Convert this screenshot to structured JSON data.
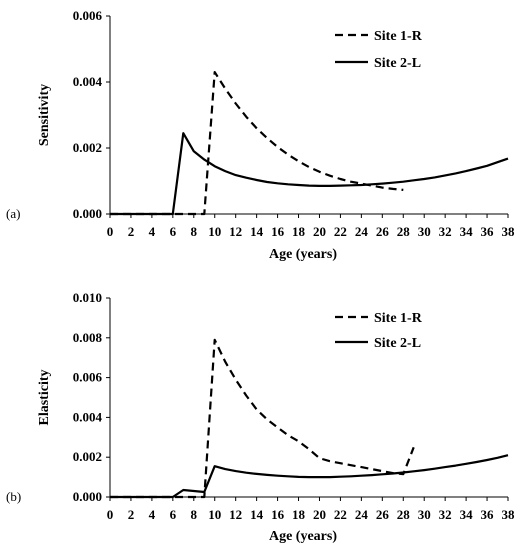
{
  "chart_data": [
    {
      "type": "line",
      "panel_label": "(a)",
      "xlabel": "Age (years)",
      "ylabel": "Sensitivity",
      "xlim": [
        0,
        38
      ],
      "ylim": [
        0,
        0.006
      ],
      "x_ticks": [
        0,
        2,
        4,
        6,
        8,
        10,
        12,
        14,
        16,
        18,
        20,
        22,
        24,
        26,
        28,
        30,
        32,
        34,
        36,
        38
      ],
      "y_ticks": [
        "0.000",
        "0.002",
        "0.004",
        "0.006"
      ],
      "legend_position": "top-right",
      "grid": false,
      "series": [
        {
          "name": "Site 1-R",
          "style": "dashed",
          "x": [
            0,
            1,
            2,
            3,
            4,
            5,
            6,
            7,
            8,
            9,
            10,
            11,
            12,
            13,
            14,
            15,
            16,
            17,
            18,
            19,
            20,
            21,
            22,
            23,
            24,
            25,
            26,
            27,
            28
          ],
          "y": [
            0,
            0,
            0,
            0,
            0,
            0,
            0,
            0,
            0,
            0,
            0.0043,
            0.0038,
            0.00335,
            0.00295,
            0.0026,
            0.0023,
            0.00203,
            0.0018,
            0.0016,
            0.00142,
            0.00128,
            0.00116,
            0.00106,
            0.00098,
            0.00092,
            0.00086,
            0.0008,
            0.00076,
            0.00073
          ]
        },
        {
          "name": "Site 2-L",
          "style": "solid",
          "x": [
            0,
            1,
            2,
            3,
            4,
            5,
            6,
            7,
            8,
            9,
            10,
            11,
            12,
            13,
            14,
            15,
            16,
            17,
            18,
            19,
            20,
            21,
            22,
            23,
            24,
            25,
            26,
            27,
            28,
            29,
            30,
            31,
            32,
            33,
            34,
            35,
            36,
            37,
            38
          ],
          "y": [
            0,
            0,
            0,
            0,
            0,
            0,
            0,
            0.00245,
            0.0019,
            0.00165,
            0.00145,
            0.0013,
            0.00118,
            0.0011,
            0.00103,
            0.00097,
            0.00093,
            0.0009,
            0.00088,
            0.00086,
            0.00085,
            0.00085,
            0.00086,
            0.00087,
            0.00088,
            0.0009,
            0.00092,
            0.00095,
            0.00098,
            0.00102,
            0.00106,
            0.00111,
            0.00117,
            0.00123,
            0.0013,
            0.00138,
            0.00146,
            0.00157,
            0.00168
          ]
        }
      ]
    },
    {
      "type": "line",
      "panel_label": "(b)",
      "xlabel": "Age (years)",
      "ylabel": "Elasticity",
      "xlim": [
        0,
        38
      ],
      "ylim": [
        0,
        0.01
      ],
      "x_ticks": [
        0,
        2,
        4,
        6,
        8,
        10,
        12,
        14,
        16,
        18,
        20,
        22,
        24,
        26,
        28,
        30,
        32,
        34,
        36,
        38
      ],
      "y_ticks": [
        "0.000",
        "0.002",
        "0.004",
        "0.006",
        "0.008",
        "0.010"
      ],
      "legend_position": "top-right",
      "grid": false,
      "series": [
        {
          "name": "Site 1-R",
          "style": "dashed",
          "x": [
            0,
            1,
            2,
            3,
            4,
            5,
            6,
            7,
            8,
            9,
            10,
            11,
            12,
            13,
            14,
            15,
            16,
            17,
            18,
            19,
            20,
            21,
            22,
            23,
            24,
            25,
            26,
            27,
            28,
            29
          ],
          "y": [
            0,
            0,
            0,
            0,
            0,
            0,
            0,
            0,
            0,
            0,
            0.0079,
            0.0068,
            0.0059,
            0.0051,
            0.0044,
            0.0039,
            0.0035,
            0.0031,
            0.0028,
            0.0024,
            0.00195,
            0.0018,
            0.0017,
            0.0016,
            0.0015,
            0.0014,
            0.0013,
            0.0012,
            0.00115,
            0.0025
          ]
        },
        {
          "name": "Site 2-L",
          "style": "solid",
          "x": [
            0,
            1,
            2,
            3,
            4,
            5,
            6,
            7,
            8,
            9,
            10,
            11,
            12,
            13,
            14,
            15,
            16,
            17,
            18,
            19,
            20,
            21,
            22,
            23,
            24,
            25,
            26,
            27,
            28,
            29,
            30,
            31,
            32,
            33,
            34,
            35,
            36,
            37,
            38
          ],
          "y": [
            0,
            0,
            0,
            0,
            0,
            0,
            0,
            0.00035,
            0.0003,
            0.00025,
            0.00155,
            0.0014,
            0.0013,
            0.00122,
            0.00116,
            0.00111,
            0.00107,
            0.00104,
            0.00101,
            0.001,
            0.001,
            0.001,
            0.00102,
            0.00104,
            0.00107,
            0.0011,
            0.00114,
            0.00118,
            0.00123,
            0.00129,
            0.00135,
            0.00142,
            0.0015,
            0.00158,
            0.00167,
            0.00176,
            0.00186,
            0.00197,
            0.0021
          ]
        }
      ]
    }
  ]
}
